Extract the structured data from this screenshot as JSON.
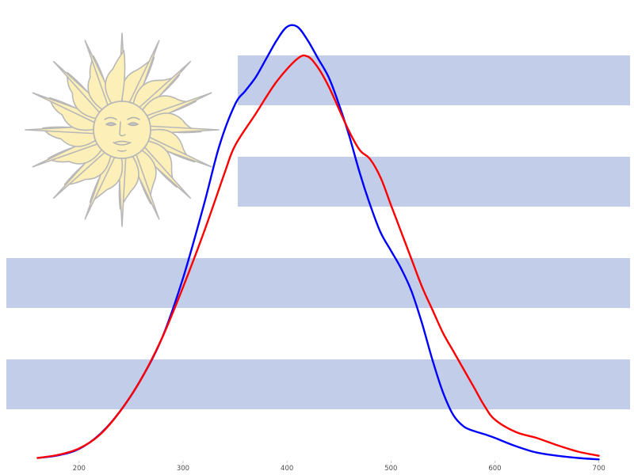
{
  "chart_data": {
    "type": "line",
    "title": "",
    "xlabel": "",
    "ylabel": "",
    "xlim": [
      130,
      730
    ],
    "ylim": [
      0,
      1.0
    ],
    "grid": false,
    "legend": "none",
    "x_ticks": [
      200,
      300,
      400,
      500,
      600,
      700
    ],
    "series": [
      {
        "color": "#0000ff",
        "points": [
          [
            160,
            0.006
          ],
          [
            180,
            0.012
          ],
          [
            200,
            0.026
          ],
          [
            220,
            0.058
          ],
          [
            240,
            0.11
          ],
          [
            260,
            0.18
          ],
          [
            280,
            0.27
          ],
          [
            300,
            0.4
          ],
          [
            320,
            0.56
          ],
          [
            335,
            0.69
          ],
          [
            350,
            0.78
          ],
          [
            360,
            0.81
          ],
          [
            370,
            0.84
          ],
          [
            380,
            0.88
          ],
          [
            390,
            0.92
          ],
          [
            400,
            0.95
          ],
          [
            410,
            0.95
          ],
          [
            420,
            0.92
          ],
          [
            430,
            0.88
          ],
          [
            440,
            0.84
          ],
          [
            450,
            0.78
          ],
          [
            460,
            0.71
          ],
          [
            470,
            0.63
          ],
          [
            480,
            0.56
          ],
          [
            490,
            0.5
          ],
          [
            500,
            0.46
          ],
          [
            510,
            0.42
          ],
          [
            520,
            0.37
          ],
          [
            530,
            0.3
          ],
          [
            540,
            0.22
          ],
          [
            550,
            0.15
          ],
          [
            560,
            0.1
          ],
          [
            570,
            0.075
          ],
          [
            580,
            0.065
          ],
          [
            590,
            0.058
          ],
          [
            600,
            0.05
          ],
          [
            620,
            0.032
          ],
          [
            640,
            0.018
          ],
          [
            660,
            0.011
          ],
          [
            680,
            0.006
          ],
          [
            700,
            0.003
          ]
        ]
      },
      {
        "color": "#ff0000",
        "points": [
          [
            160,
            0.006
          ],
          [
            180,
            0.013
          ],
          [
            200,
            0.027
          ],
          [
            220,
            0.057
          ],
          [
            240,
            0.11
          ],
          [
            260,
            0.18
          ],
          [
            280,
            0.27
          ],
          [
            300,
            0.38
          ],
          [
            320,
            0.5
          ],
          [
            340,
            0.63
          ],
          [
            350,
            0.69
          ],
          [
            370,
            0.76
          ],
          [
            390,
            0.83
          ],
          [
            410,
            0.88
          ],
          [
            420,
            0.885
          ],
          [
            430,
            0.86
          ],
          [
            440,
            0.82
          ],
          [
            450,
            0.77
          ],
          [
            460,
            0.72
          ],
          [
            470,
            0.68
          ],
          [
            480,
            0.66
          ],
          [
            490,
            0.62
          ],
          [
            500,
            0.56
          ],
          [
            510,
            0.5
          ],
          [
            520,
            0.44
          ],
          [
            530,
            0.38
          ],
          [
            540,
            0.33
          ],
          [
            550,
            0.28
          ],
          [
            560,
            0.24
          ],
          [
            570,
            0.2
          ],
          [
            580,
            0.16
          ],
          [
            590,
            0.12
          ],
          [
            600,
            0.09
          ],
          [
            620,
            0.063
          ],
          [
            640,
            0.05
          ],
          [
            660,
            0.034
          ],
          [
            680,
            0.02
          ],
          [
            700,
            0.011
          ]
        ]
      }
    ]
  },
  "background": {
    "flag": "uruguay",
    "stripe_color": "#c2cde9",
    "sun_fill": "#fdefb8",
    "sun_outline": "#b8b8b8"
  }
}
